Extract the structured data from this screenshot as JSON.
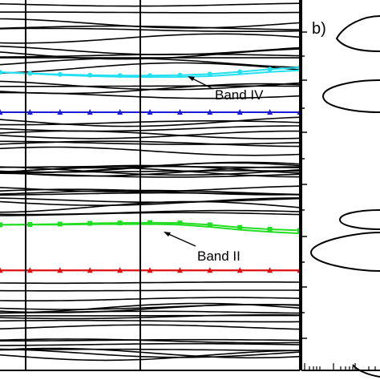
{
  "chart_data": [
    {
      "type": "line",
      "panel": "band-structure",
      "title": "",
      "xlabel": "",
      "ylabel": "",
      "xlim": [
        0,
        1
      ],
      "ylim": [
        0,
        1
      ],
      "highlighted_series": [
        {
          "name": "Band IV",
          "color": "#22e0f0",
          "marker": "circle",
          "x": [
            0.0,
            0.1,
            0.2,
            0.3,
            0.4,
            0.5,
            0.6,
            0.7,
            0.8,
            0.9,
            1.0
          ],
          "y": [
            0.805,
            0.802,
            0.799,
            0.797,
            0.796,
            0.796,
            0.797,
            0.8,
            0.806,
            0.813,
            0.818
          ]
        },
        {
          "name": "",
          "color": "#1a1ad8",
          "marker": "triangle",
          "x": [
            0.0,
            0.1,
            0.2,
            0.3,
            0.4,
            0.5,
            0.6,
            0.7,
            0.8,
            0.9,
            1.0
          ],
          "y": [
            0.697,
            0.697,
            0.697,
            0.697,
            0.697,
            0.697,
            0.697,
            0.697,
            0.697,
            0.697,
            0.697
          ]
        },
        {
          "name": "Band II",
          "color": "#22dd22",
          "marker": "square",
          "x": [
            0.0,
            0.1,
            0.2,
            0.3,
            0.4,
            0.5,
            0.6,
            0.7,
            0.8,
            0.9,
            1.0
          ],
          "y": [
            0.393,
            0.394,
            0.395,
            0.397,
            0.398,
            0.399,
            0.398,
            0.393,
            0.386,
            0.381,
            0.378
          ]
        },
        {
          "name": "",
          "color": "#dd1111",
          "marker": "triangle",
          "x": [
            0.0,
            0.1,
            0.2,
            0.3,
            0.4,
            0.5,
            0.6,
            0.7,
            0.8,
            0.9,
            1.0
          ],
          "y": [
            0.27,
            0.27,
            0.27,
            0.27,
            0.27,
            0.27,
            0.27,
            0.27,
            0.27,
            0.27,
            0.27
          ]
        }
      ],
      "annotations": [
        {
          "text": "Band IV",
          "points_to": "Band IV"
        },
        {
          "text": "Band II",
          "points_to": "Band II"
        }
      ],
      "grid": false
    },
    {
      "type": "line",
      "panel": "b",
      "panel_label": "b)",
      "title": "",
      "xlabel": "",
      "ylabel": "",
      "xscale": "log",
      "description_values": "density-like peaks at band energies",
      "peaks_y": [
        0.818,
        0.697,
        0.395,
        0.35
      ]
    }
  ]
}
